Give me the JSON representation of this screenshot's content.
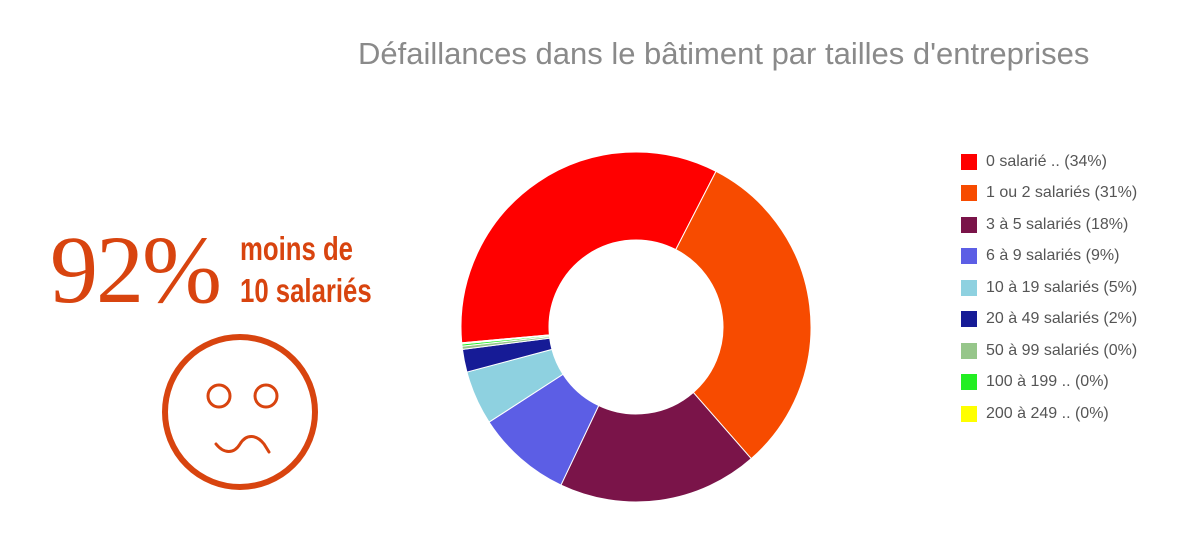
{
  "infographic": {
    "big_percent": "92%",
    "caption_line1": "moins de",
    "caption_line2": "10 salariés",
    "accent_color": "#d8440f",
    "face_icon": "sad-face-icon"
  },
  "chart_data": {
    "type": "pie",
    "donut": true,
    "title": "Défaillances dans le bâtiment par tailles d'entreprises",
    "legend_position": "right",
    "slices": [
      {
        "label": "0 salarié ..",
        "percent_label": "(34%)",
        "value": 34.0,
        "color": "#ff0000"
      },
      {
        "label": "1 ou 2 salariés",
        "percent_label": "(31%)",
        "value": 31.0,
        "color": "#f74b00"
      },
      {
        "label": "3 à 5 salariés",
        "percent_label": "(18%)",
        "value": 18.5,
        "color": "#7a1449"
      },
      {
        "label": "6 à 9 salariés",
        "percent_label": "(9%)",
        "value": 8.8,
        "color": "#5c5ee5"
      },
      {
        "label": "10 à 19 salariés",
        "percent_label": "(5%)",
        "value": 5.0,
        "color": "#8ed1e0"
      },
      {
        "label": "20 à 49 salariés",
        "percent_label": "(2%)",
        "value": 2.1,
        "color": "#161b96"
      },
      {
        "label": "50 à 99 salariés",
        "percent_label": "(0%)",
        "value": 0.3,
        "color": "#96c68a"
      },
      {
        "label": "100 à 199 ..",
        "percent_label": "(0%)",
        "value": 0.2,
        "color": "#22ee22"
      },
      {
        "label": "200 à 249 ..",
        "percent_label": "(0%)",
        "value": 0.1,
        "color": "#ffff00"
      }
    ]
  }
}
